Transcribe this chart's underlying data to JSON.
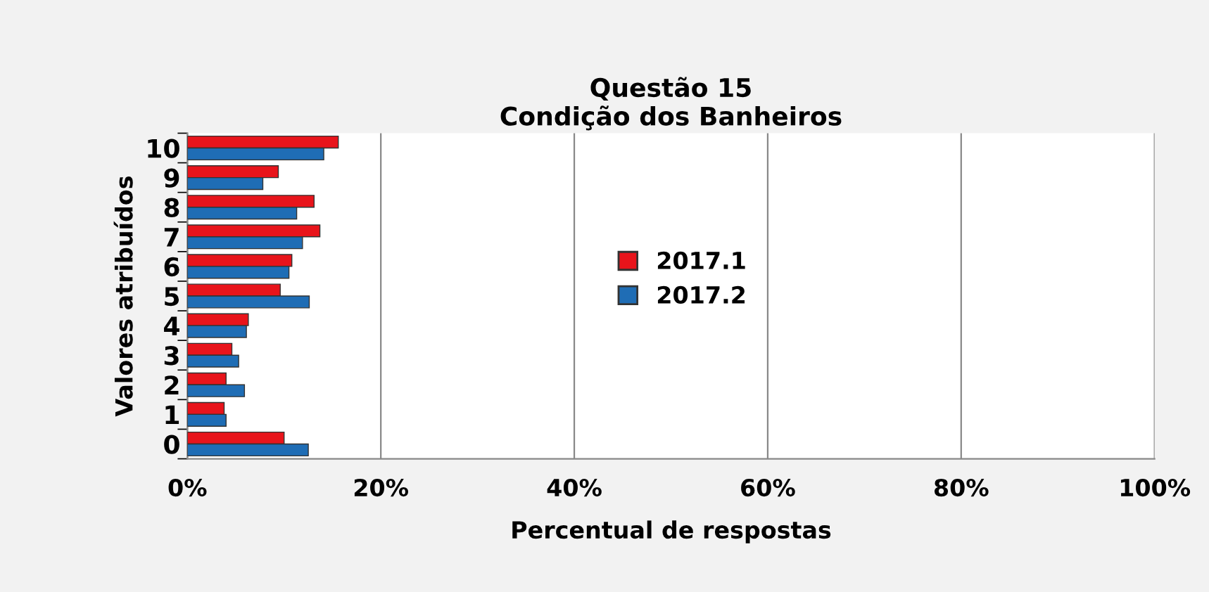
{
  "chart_data": {
    "type": "bar",
    "orientation": "horizontal",
    "title": "Questão 15\nCondição dos Banheiros",
    "xlabel": "Percentual de respostas",
    "ylabel": "Valores atribuídos",
    "categories": [
      "10",
      "9",
      "8",
      "7",
      "6",
      "5",
      "4",
      "3",
      "2",
      "1",
      "0"
    ],
    "series": [
      {
        "name": "2017.1",
        "color": "#e8141b",
        "values": [
          15.6,
          9.4,
          13.1,
          13.7,
          10.8,
          9.6,
          6.3,
          4.6,
          4.0,
          3.8,
          10.0
        ]
      },
      {
        "name": "2017.2",
        "color": "#1f6db5",
        "values": [
          14.1,
          7.8,
          11.3,
          11.9,
          10.5,
          12.6,
          6.1,
          5.3,
          5.9,
          4.0,
          12.5
        ]
      }
    ],
    "xlim": [
      0,
      100
    ],
    "xticks": [
      {
        "value": 0,
        "label": "0%"
      },
      {
        "value": 20,
        "label": "20%"
      },
      {
        "value": 40,
        "label": "40%"
      },
      {
        "value": 60,
        "label": "60%"
      },
      {
        "value": 80,
        "label": "80%"
      },
      {
        "value": 100,
        "label": "100%"
      }
    ],
    "grid": "x",
    "legend": "right"
  }
}
